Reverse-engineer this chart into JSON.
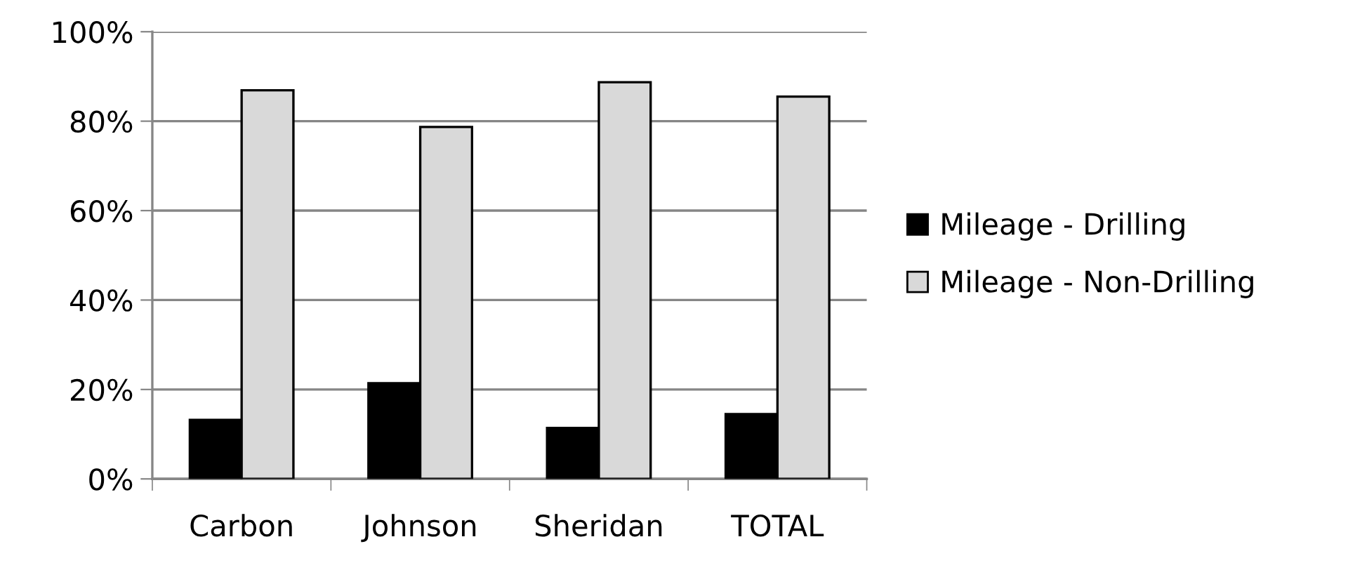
{
  "chart_data": {
    "type": "bar",
    "categories": [
      "Carbon",
      "Johnson",
      "Sheridan",
      "TOTAL"
    ],
    "series": [
      {
        "name": "Mileage - Drilling",
        "color": "#000000",
        "values": [
          13.2,
          21.4,
          11.4,
          14.5
        ]
      },
      {
        "name": "Mileage - Non-Drilling",
        "color": "#d9d9d9",
        "values": [
          86.9,
          78.7,
          88.7,
          85.5
        ]
      }
    ],
    "ylim": [
      0,
      100
    ],
    "yticks": [
      {
        "value": 0,
        "label": "0%"
      },
      {
        "value": 20,
        "label": "20%"
      },
      {
        "value": 40,
        "label": "40%"
      },
      {
        "value": 60,
        "label": "60%"
      },
      {
        "value": 80,
        "label": "80%"
      },
      {
        "value": 100,
        "label": "100%"
      }
    ],
    "grid": "y",
    "legend": "right"
  }
}
